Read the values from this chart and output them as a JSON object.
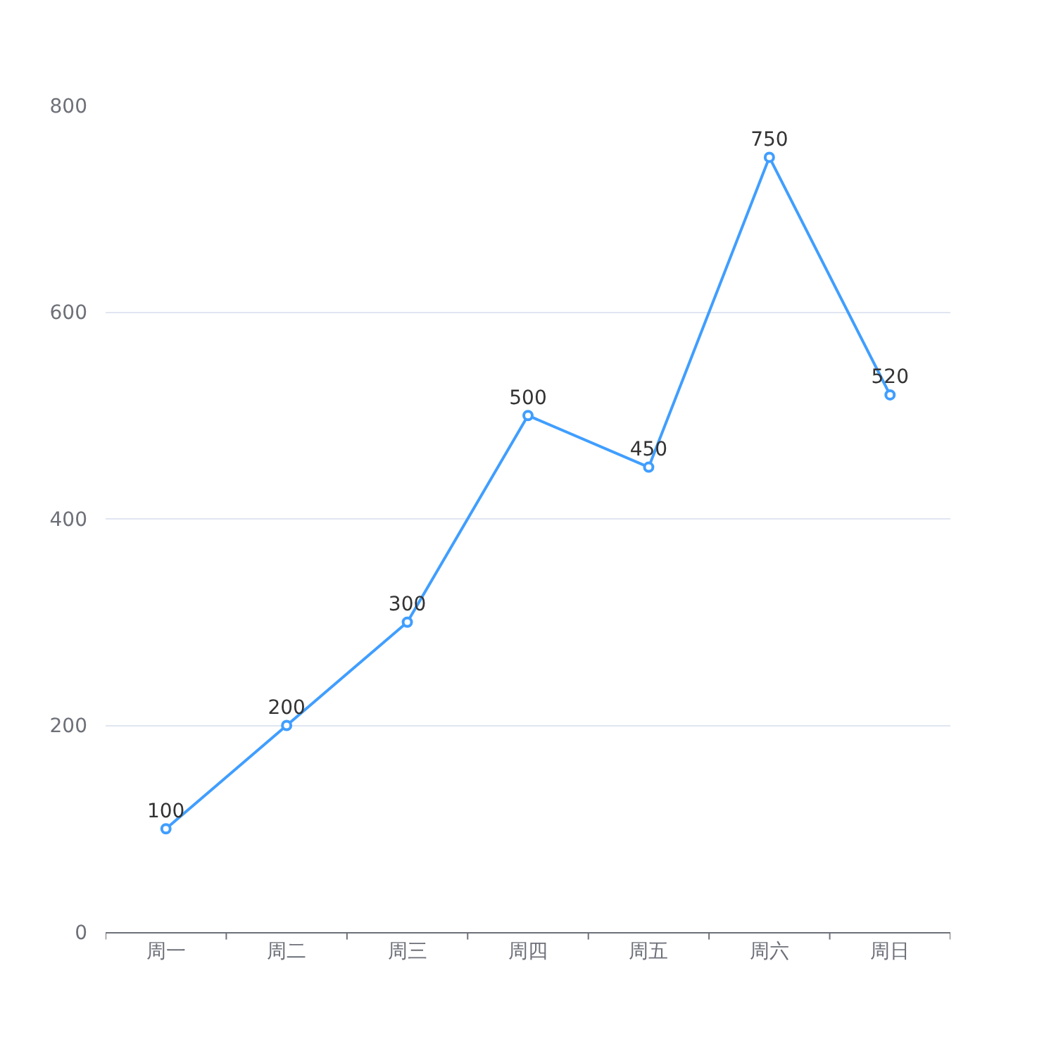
{
  "chart_data": {
    "type": "line",
    "categories": [
      "周一",
      "周二",
      "周三",
      "周四",
      "周五",
      "周六",
      "周日"
    ],
    "series": [
      {
        "color": "#409eff",
        "values": [
          100,
          200,
          300,
          500,
          450,
          750,
          520
        ]
      }
    ],
    "ylim": [
      0,
      800
    ],
    "yticks": [
      0,
      200,
      400,
      600,
      800
    ],
    "grid": "y",
    "marker": "circle",
    "line_style": "solid",
    "data_labels": true
  }
}
